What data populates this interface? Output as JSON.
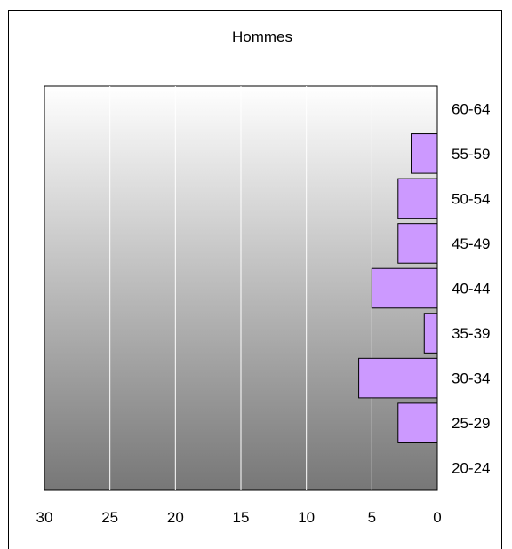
{
  "chart_data": {
    "type": "bar",
    "orientation": "horizontal",
    "title": "Hommes",
    "xlabel": "",
    "ylabel": "",
    "categories": [
      "20-24",
      "25-29",
      "30-34",
      "35-39",
      "40-44",
      "45-49",
      "50-54",
      "55-59",
      "60-64"
    ],
    "values": [
      0,
      3,
      6,
      1,
      5,
      3,
      3,
      2,
      0
    ],
    "xlim": [
      30,
      0
    ],
    "x_ticks": [
      "30",
      "25",
      "20",
      "15",
      "10",
      "5",
      "0"
    ],
    "grid": true,
    "legend": "none",
    "bar_color": "#cc99ff",
    "bar_edge_color": "#000000",
    "plot_background": "gradient light-to-dark grey"
  }
}
